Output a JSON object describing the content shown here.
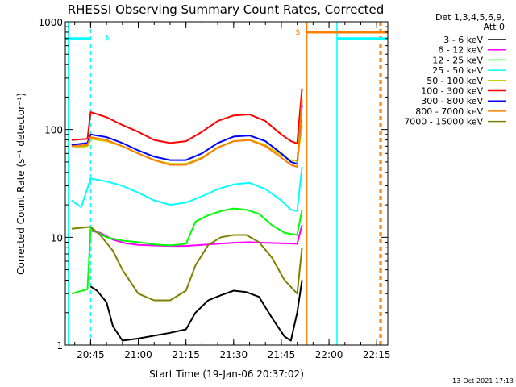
{
  "chart_data": {
    "type": "line",
    "title": "RHESSI Observing Summary Count Rates, Corrected",
    "ylabel": "Corrected Count Rate (s⁻¹ detector⁻¹)",
    "xlabel": "Start Time (19-Jan-06 20:37:02)",
    "y_scale": "log",
    "ylim": [
      1,
      1000
    ],
    "xlim": [
      "20:37:02",
      "22:18:30"
    ],
    "y_ticks": [
      {
        "v": 1,
        "label": "1"
      },
      {
        "v": 10,
        "label": "10"
      },
      {
        "v": 100,
        "label": "100"
      },
      {
        "v": 1000,
        "label": "1000"
      }
    ],
    "x_ticks": [
      {
        "t": "20:45",
        "label": "20:45"
      },
      {
        "t": "21:00",
        "label": "21:00"
      },
      {
        "t": "21:15",
        "label": "21:15"
      },
      {
        "t": "21:30",
        "label": "21:30"
      },
      {
        "t": "21:45",
        "label": "21:45"
      },
      {
        "t": "22:00",
        "label": "22:00"
      },
      {
        "t": "22:15",
        "label": "22:15"
      }
    ],
    "legend_header": [
      "Det 1,3,4,5,6,9,",
      "Att 0"
    ],
    "legend_position": "right",
    "series": [
      {
        "name": "3 - 6 keV",
        "color": "#000000",
        "points": [
          [
            "20:45:00",
            3.5
          ],
          [
            "20:47:00",
            3.2
          ],
          [
            "20:50:00",
            2.5
          ],
          [
            "20:52:00",
            1.5
          ],
          [
            "20:55:00",
            1.1
          ],
          [
            "21:00:00",
            1.15
          ],
          [
            "21:10:00",
            1.3
          ],
          [
            "21:15:00",
            1.4
          ],
          [
            "21:18:00",
            2.0
          ],
          [
            "21:22:00",
            2.6
          ],
          [
            "21:26:00",
            2.9
          ],
          [
            "21:30:00",
            3.2
          ],
          [
            "21:34:00",
            3.1
          ],
          [
            "21:38:00",
            2.8
          ],
          [
            "21:42:00",
            1.8
          ],
          [
            "21:46:00",
            1.2
          ],
          [
            "21:48:00",
            1.1
          ],
          [
            "21:50:00",
            2.0
          ],
          [
            "21:51:30",
            4.0
          ]
        ]
      },
      {
        "name": "6 - 12 keV",
        "color": "#ff00ff",
        "points": [
          [
            "20:45:00",
            11.5
          ],
          [
            "20:48:00",
            11.0
          ],
          [
            "20:52:00",
            9.5
          ],
          [
            "20:56:00",
            8.8
          ],
          [
            "21:00:00",
            8.5
          ],
          [
            "21:05:00",
            8.4
          ],
          [
            "21:10:00",
            8.3
          ],
          [
            "21:15:00",
            8.3
          ],
          [
            "21:20:00",
            8.5
          ],
          [
            "21:25:00",
            8.7
          ],
          [
            "21:30:00",
            8.9
          ],
          [
            "21:35:00",
            9.0
          ],
          [
            "21:40:00",
            8.9
          ],
          [
            "21:45:00",
            8.8
          ],
          [
            "21:50:00",
            8.7
          ],
          [
            "21:51:30",
            13.0
          ]
        ]
      },
      {
        "name": "12 - 25 keV",
        "color": "#00ff00",
        "points": [
          [
            "20:39:00",
            3.0
          ],
          [
            "20:44:00",
            3.3
          ],
          [
            "20:45:00",
            12.0
          ],
          [
            "20:50:00",
            10.0
          ],
          [
            "20:55:00",
            9.3
          ],
          [
            "21:00:00",
            9.0
          ],
          [
            "21:05:00",
            8.6
          ],
          [
            "21:10:00",
            8.4
          ],
          [
            "21:15:00",
            8.7
          ],
          [
            "21:18:00",
            14.0
          ],
          [
            "21:22:00",
            16.0
          ],
          [
            "21:26:00",
            17.5
          ],
          [
            "21:30:00",
            18.5
          ],
          [
            "21:34:00",
            18.0
          ],
          [
            "21:38:00",
            16.5
          ],
          [
            "21:42:00",
            13.0
          ],
          [
            "21:46:00",
            11.0
          ],
          [
            "21:50:00",
            10.5
          ],
          [
            "21:51:30",
            18.0
          ]
        ]
      },
      {
        "name": "25 - 50 keV",
        "color": "#00ffff",
        "points": [
          [
            "20:39:00",
            22.0
          ],
          [
            "20:42:00",
            19.0
          ],
          [
            "20:45:00",
            35.0
          ],
          [
            "20:50:00",
            33.0
          ],
          [
            "20:55:00",
            30.0
          ],
          [
            "21:00:00",
            26.0
          ],
          [
            "21:05:00",
            22.0
          ],
          [
            "21:10:00",
            20.0
          ],
          [
            "21:15:00",
            21.0
          ],
          [
            "21:20:00",
            24.0
          ],
          [
            "21:25:00",
            28.0
          ],
          [
            "21:30:00",
            31.0
          ],
          [
            "21:35:00",
            32.0
          ],
          [
            "21:40:00",
            28.0
          ],
          [
            "21:45:00",
            22.0
          ],
          [
            "21:48:00",
            18.0
          ],
          [
            "21:50:00",
            17.5
          ],
          [
            "21:51:30",
            45.0
          ]
        ]
      },
      {
        "name": "50 - 100 keV",
        "color": "#cccc00",
        "points": [
          [
            "20:40:00",
            68.0
          ],
          [
            "20:44:00",
            70.0
          ],
          [
            "20:45:00",
            82.0
          ],
          [
            "20:50:00",
            78.0
          ],
          [
            "20:55:00",
            70.0
          ],
          [
            "21:00:00",
            60.0
          ],
          [
            "21:05:00",
            52.0
          ],
          [
            "21:10:00",
            48.0
          ],
          [
            "21:15:00",
            48.0
          ],
          [
            "21:20:00",
            55.0
          ],
          [
            "21:25:00",
            68.0
          ],
          [
            "21:30:00",
            78.0
          ],
          [
            "21:35:00",
            80.0
          ],
          [
            "21:40:00",
            72.0
          ],
          [
            "21:45:00",
            58.0
          ],
          [
            "21:48:00",
            52.0
          ],
          [
            "21:50:00",
            51.0
          ],
          [
            "21:51:30",
            110.0
          ]
        ]
      },
      {
        "name": "100 - 300 keV",
        "color": "#ff0000",
        "points": [
          [
            "20:39:00",
            80.0
          ],
          [
            "20:44:00",
            82.0
          ],
          [
            "20:45:00",
            145.0
          ],
          [
            "20:50:00",
            130.0
          ],
          [
            "20:55:00",
            110.0
          ],
          [
            "21:00:00",
            95.0
          ],
          [
            "21:05:00",
            80.0
          ],
          [
            "21:10:00",
            75.0
          ],
          [
            "21:15:00",
            78.0
          ],
          [
            "21:20:00",
            95.0
          ],
          [
            "21:25:00",
            120.0
          ],
          [
            "21:30:00",
            135.0
          ],
          [
            "21:35:00",
            138.0
          ],
          [
            "21:40:00",
            120.0
          ],
          [
            "21:45:00",
            90.0
          ],
          [
            "21:48:00",
            78.0
          ],
          [
            "21:50:00",
            74.0
          ],
          [
            "21:51:30",
            240.0
          ]
        ]
      },
      {
        "name": "300 - 800 keV",
        "color": "#0000ff",
        "points": [
          [
            "20:39:00",
            72.0
          ],
          [
            "20:44:00",
            75.0
          ],
          [
            "20:45:00",
            90.0
          ],
          [
            "20:50:00",
            85.0
          ],
          [
            "20:55:00",
            75.0
          ],
          [
            "21:00:00",
            64.0
          ],
          [
            "21:05:00",
            56.0
          ],
          [
            "21:10:00",
            52.0
          ],
          [
            "21:15:00",
            52.0
          ],
          [
            "21:20:00",
            60.0
          ],
          [
            "21:25:00",
            75.0
          ],
          [
            "21:30:00",
            86.0
          ],
          [
            "21:35:00",
            88.0
          ],
          [
            "21:40:00",
            78.0
          ],
          [
            "21:45:00",
            60.0
          ],
          [
            "21:48:00",
            50.0
          ],
          [
            "21:50:00",
            48.0
          ],
          [
            "21:51:30",
            170.0
          ]
        ]
      },
      {
        "name": "800 - 7000 keV",
        "color": "#ff8000",
        "points": [
          [
            "20:39:00",
            70.0
          ],
          [
            "20:44:00",
            72.0
          ],
          [
            "20:45:00",
            85.0
          ],
          [
            "20:50:00",
            80.0
          ],
          [
            "20:55:00",
            70.0
          ],
          [
            "21:00:00",
            60.0
          ],
          [
            "21:05:00",
            52.0
          ],
          [
            "21:10:00",
            47.0
          ],
          [
            "21:15:00",
            47.0
          ],
          [
            "21:20:00",
            54.0
          ],
          [
            "21:25:00",
            68.0
          ],
          [
            "21:30:00",
            78.0
          ],
          [
            "21:35:00",
            80.0
          ],
          [
            "21:40:00",
            70.0
          ],
          [
            "21:45:00",
            55.0
          ],
          [
            "21:48:00",
            47.0
          ],
          [
            "21:50:00",
            45.0
          ],
          [
            "21:51:30",
            190.0
          ]
        ]
      },
      {
        "name": "7000 - 15000 keV",
        "color": "#808000",
        "points": [
          [
            "20:39:00",
            12.0
          ],
          [
            "20:45:00",
            12.5
          ],
          [
            "20:48:00",
            10.5
          ],
          [
            "20:52:00",
            7.5
          ],
          [
            "20:55:00",
            5.0
          ],
          [
            "21:00:00",
            3.0
          ],
          [
            "21:05:00",
            2.6
          ],
          [
            "21:10:00",
            2.6
          ],
          [
            "21:15:00",
            3.2
          ],
          [
            "21:18:00",
            5.5
          ],
          [
            "21:22:00",
            8.5
          ],
          [
            "21:26:00",
            10.0
          ],
          [
            "21:30:00",
            10.5
          ],
          [
            "21:34:00",
            10.5
          ],
          [
            "21:38:00",
            9.0
          ],
          [
            "21:42:00",
            6.5
          ],
          [
            "21:46:00",
            4.0
          ],
          [
            "21:50:00",
            3.0
          ],
          [
            "21:51:30",
            8.0
          ]
        ]
      }
    ],
    "flags": [
      {
        "label": "N",
        "color": "#00ffff",
        "bar_value": 700,
        "start": "20:37:02",
        "end": "20:45:00"
      },
      {
        "label": "S",
        "color": "#ff8000",
        "bar_value": 800,
        "start": "21:53:00",
        "end": "22:18:30"
      },
      {
        "label": "",
        "color": "#00ffff",
        "bar_value": 700,
        "start": "22:02:30",
        "end": "22:18:30"
      }
    ],
    "vertical_markers": [
      {
        "t": "20:38:00",
        "color": "#00ffff",
        "style": "solid"
      },
      {
        "t": "20:45:00",
        "color": "#00ffff",
        "style": "dashed"
      },
      {
        "t": "21:53:00",
        "color": "#ff8000",
        "style": "solid"
      },
      {
        "t": "22:02:30",
        "color": "#00ffff",
        "style": "solid"
      },
      {
        "t": "22:16:00",
        "color": "#ff8000",
        "style": "dashed"
      },
      {
        "t": "22:16:30",
        "color": "#00ffff",
        "style": "dashed"
      }
    ],
    "footer": "13-Oct-2021 17:13"
  }
}
